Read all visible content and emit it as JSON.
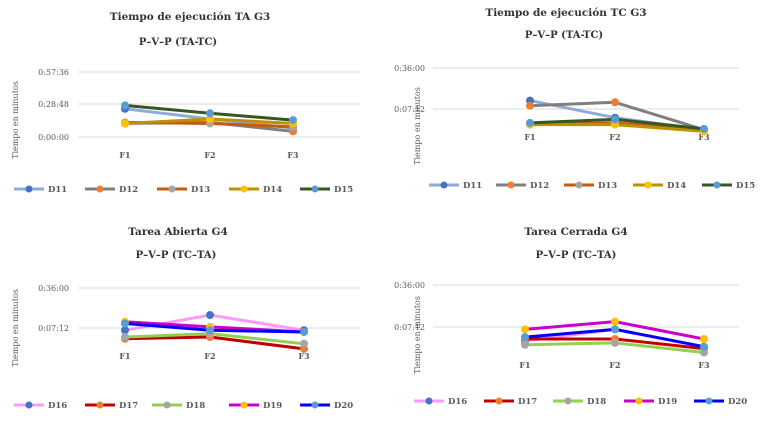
{
  "chart_data": [
    {
      "type": "line",
      "title": "Tiempo de ejecución TA G3",
      "subtitle": "P–V–P   (TA-TC)",
      "ylabel": "Tiempo en minutos",
      "xlabel": "",
      "categories": [
        "F1",
        "F2",
        "F3"
      ],
      "y_ticks": [
        "0:00:00",
        "0:28:48",
        "0:57:36"
      ],
      "ylim": [
        0,
        3456
      ],
      "y_unit": "seconds",
      "grid": true,
      "legend_position": "bottom",
      "series": [
        {
          "name": "D11",
          "color": "#8FAADC",
          "marker": "#4472C4",
          "values": [
            1500,
            960,
            480
          ]
        },
        {
          "name": "D12",
          "color": "#7F7F7F",
          "marker": "#ED7D31",
          "values": [
            720,
            780,
            300
          ]
        },
        {
          "name": "D13",
          "color": "#C55A11",
          "marker": "#A5A5A5",
          "values": [
            780,
            720,
            540
          ]
        },
        {
          "name": "D14",
          "color": "#BF9000",
          "marker": "#FFC000",
          "values": [
            720,
            960,
            720
          ]
        },
        {
          "name": "D15",
          "color": "#375623",
          "marker": "#5B9BD5",
          "values": [
            1680,
            1260,
            900
          ]
        }
      ]
    },
    {
      "type": "line",
      "title": "Tiempo de ejecución TC G3",
      "subtitle": "P–V–P   (TA-TC)",
      "ylabel": "Tiempo en minutos",
      "xlabel": "",
      "categories": [
        "F1",
        "F2",
        "F3"
      ],
      "y_ticks": [
        "0:07:12",
        "0:36:00"
      ],
      "ylim": [
        0,
        2520
      ],
      "y_unit": "seconds",
      "grid": true,
      "legend_position": "bottom",
      "series": [
        {
          "name": "D11",
          "color": "#8FAADC",
          "marker": "#4472C4",
          "values": [
            1380,
            780,
            360
          ]
        },
        {
          "name": "D12",
          "color": "#7F7F7F",
          "marker": "#ED7D31",
          "values": [
            1200,
            1320,
            360
          ]
        },
        {
          "name": "D13",
          "color": "#C55A11",
          "marker": "#A5A5A5",
          "values": [
            540,
            600,
            360
          ]
        },
        {
          "name": "D14",
          "color": "#BF9000",
          "marker": "#FFC000",
          "values": [
            540,
            540,
            300
          ]
        },
        {
          "name": "D15",
          "color": "#375623",
          "marker": "#5B9BD5",
          "values": [
            600,
            720,
            390
          ]
        }
      ]
    },
    {
      "type": "line",
      "title": "Tarea Abierta G4",
      "subtitle": "P–V–P   (TC–TA)",
      "ylabel": "Tiempo en minutos",
      "xlabel": "",
      "categories": [
        "F1",
        "F2",
        "F3"
      ],
      "y_ticks": [
        "0:07:12",
        "0:36:00"
      ],
      "ylim": [
        0,
        2520
      ],
      "y_unit": "seconds",
      "grid": true,
      "legend_position": "bottom",
      "series": [
        {
          "name": "D16",
          "color": "#FF99FF",
          "marker": "#4472C4",
          "values": [
            1020,
            1560,
            1020
          ]
        },
        {
          "name": "D17",
          "color": "#C00000",
          "marker": "#ED7D31",
          "values": [
            720,
            780,
            360
          ]
        },
        {
          "name": "D18",
          "color": "#92D050",
          "marker": "#A5A5A5",
          "values": [
            780,
            900,
            540
          ]
        },
        {
          "name": "D19",
          "color": "#CC00CC",
          "marker": "#FFC000",
          "values": [
            1320,
            1140,
            960
          ]
        },
        {
          "name": "D20",
          "color": "#0000FF",
          "marker": "#5B9BD5",
          "values": [
            1260,
            1020,
            960
          ]
        }
      ]
    },
    {
      "type": "line",
      "title": "Tarea Cerrada G4",
      "subtitle": "P–V–P   (TC–TA)",
      "ylabel": "Tiempo en minutos",
      "xlabel": "",
      "categories": [
        "F1",
        "F2",
        "F3"
      ],
      "y_ticks": [
        "0:07:12",
        "0:36:00"
      ],
      "ylim": [
        0,
        2520
      ],
      "y_unit": "seconds",
      "grid": true,
      "legend_position": "bottom",
      "series": [
        {
          "name": "D16",
          "color": "#FF99FF",
          "marker": "#4472C4",
          "values": [
            780,
            1140,
            600
          ]
        },
        {
          "name": "D17",
          "color": "#C00000",
          "marker": "#ED7D31",
          "values": [
            840,
            840,
            540
          ]
        },
        {
          "name": "D18",
          "color": "#92D050",
          "marker": "#A5A5A5",
          "values": [
            660,
            720,
            420
          ]
        },
        {
          "name": "D19",
          "color": "#CC00CC",
          "marker": "#FFC000",
          "values": [
            1140,
            1380,
            840
          ]
        },
        {
          "name": "D20",
          "color": "#0000FF",
          "marker": "#5B9BD5",
          "values": [
            900,
            1140,
            600
          ]
        }
      ]
    }
  ]
}
